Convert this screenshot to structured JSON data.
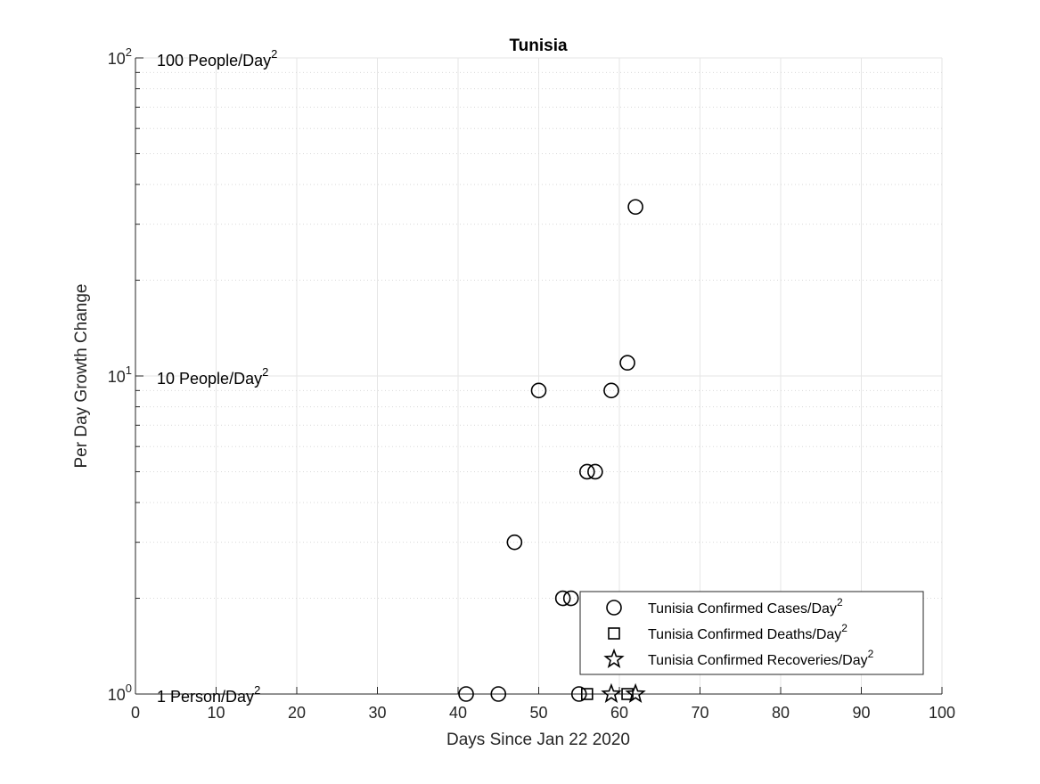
{
  "chart_data": {
    "type": "scatter",
    "title": "Tunisia",
    "xlabel": "Days Since Jan 22 2020",
    "ylabel": "Per Day Growth Change",
    "xlim": [
      0,
      100
    ],
    "ylim": [
      1,
      100
    ],
    "yscale": "log",
    "grid": true,
    "legend_position": "bottom-right",
    "x_ticks": [
      0,
      10,
      20,
      30,
      40,
      50,
      60,
      70,
      80,
      90,
      100
    ],
    "y_ticks": [
      {
        "value": 1,
        "base": "10",
        "exp": "0"
      },
      {
        "value": 10,
        "base": "10",
        "exp": "1"
      },
      {
        "value": 100,
        "base": "10",
        "exp": "2"
      }
    ],
    "annotations": [
      {
        "value": 100,
        "text": "100 People/Day",
        "sup": "2"
      },
      {
        "value": 10,
        "text": "10 People/Day",
        "sup": "2"
      },
      {
        "value": 1,
        "text": "1 Person/Day",
        "sup": "2"
      }
    ],
    "series": [
      {
        "name": "Tunisia Confirmed Cases/Day",
        "name_sup": "2",
        "marker": "circle",
        "points": [
          {
            "x": 41,
            "y": 1
          },
          {
            "x": 45,
            "y": 1
          },
          {
            "x": 47,
            "y": 3
          },
          {
            "x": 50,
            "y": 9
          },
          {
            "x": 53,
            "y": 2
          },
          {
            "x": 54,
            "y": 2
          },
          {
            "x": 55,
            "y": 1
          },
          {
            "x": 56,
            "y": 5
          },
          {
            "x": 57,
            "y": 5
          },
          {
            "x": 59,
            "y": 9
          },
          {
            "x": 61,
            "y": 11
          },
          {
            "x": 62,
            "y": 34
          }
        ]
      },
      {
        "name": "Tunisia Confirmed Deaths/Day",
        "name_sup": "2",
        "marker": "square",
        "points": [
          {
            "x": 56,
            "y": 1
          },
          {
            "x": 61,
            "y": 1
          }
        ]
      },
      {
        "name": "Tunisia Confirmed Recoveries/Day",
        "name_sup": "2",
        "marker": "star",
        "points": [
          {
            "x": 59,
            "y": 1
          },
          {
            "x": 62,
            "y": 1
          }
        ]
      }
    ]
  }
}
